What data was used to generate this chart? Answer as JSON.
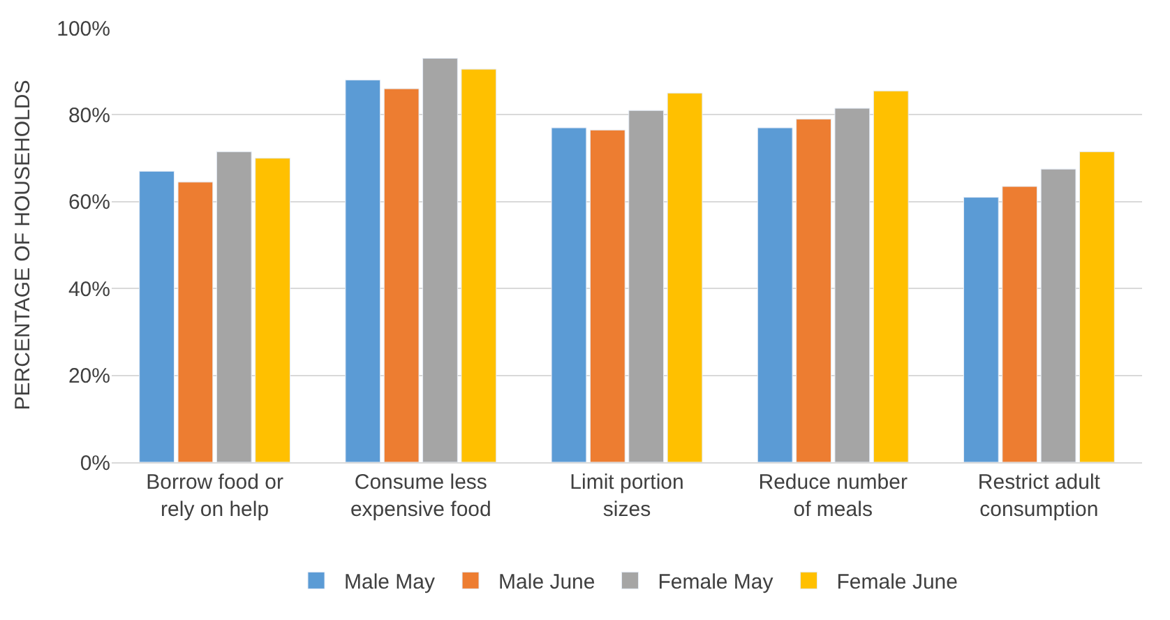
{
  "chart_data": {
    "type": "bar",
    "ylabel": "PERCENTAGE OF HOUSEHOLDS",
    "categories": [
      "Borrow food or\nrely on help",
      "Consume less\nexpensive food",
      "Limit portion\nsizes",
      "Reduce number\nof meals",
      "Restrict adult\nconsumption"
    ],
    "series": [
      {
        "name": "Male May",
        "color": "#5b9bd5",
        "values": [
          67,
          88,
          77,
          77,
          61
        ]
      },
      {
        "name": "Male June",
        "color": "#ed7d31",
        "values": [
          64.5,
          86,
          76.5,
          79,
          63.5
        ]
      },
      {
        "name": "Female May",
        "color": "#a5a5a5",
        "values": [
          71.5,
          93,
          81,
          81.5,
          67.5
        ]
      },
      {
        "name": "Female June",
        "color": "#ffc000",
        "values": [
          70,
          90.5,
          85,
          85.5,
          71.5
        ]
      }
    ],
    "ylim": [
      0,
      100
    ],
    "yticks": [
      {
        "value": 0,
        "label": "0%"
      },
      {
        "value": 20,
        "label": "20%"
      },
      {
        "value": 40,
        "label": "40%"
      },
      {
        "value": 60,
        "label": "60%"
      },
      {
        "value": 80,
        "label": "80%"
      },
      {
        "value": 100,
        "label": "100%"
      }
    ],
    "grid": "y",
    "legend": "bottom"
  }
}
